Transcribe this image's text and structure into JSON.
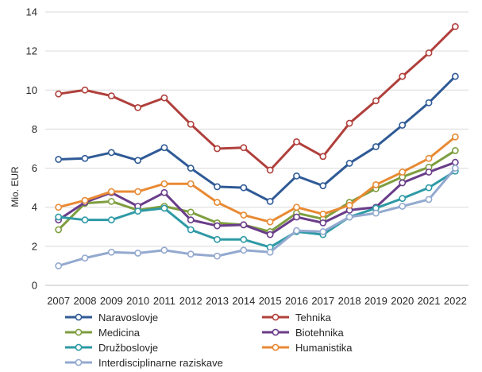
{
  "chart_data": {
    "type": "line",
    "title": "",
    "xlabel": "",
    "ylabel": "Mio. EUR",
    "ylim": [
      0,
      14
    ],
    "yticks": [
      0,
      2,
      4,
      6,
      8,
      10,
      12,
      14
    ],
    "grid": true,
    "legend_position": "bottom",
    "categories": [
      "2007",
      "2008",
      "2009",
      "2010",
      "2011",
      "2012",
      "2013",
      "2014",
      "2015",
      "2016",
      "2017",
      "2018",
      "2019",
      "2020",
      "2021",
      "2022"
    ],
    "series": [
      {
        "name": "Naravoslovje",
        "color": "#2F5A96",
        "values": [
          6.45,
          6.5,
          6.8,
          6.4,
          7.05,
          6.0,
          5.05,
          5.0,
          4.3,
          5.6,
          5.1,
          6.25,
          7.1,
          8.2,
          9.35,
          10.7
        ]
      },
      {
        "name": "Tehnika",
        "color": "#B0403C",
        "values": [
          9.8,
          10.0,
          9.7,
          9.1,
          9.6,
          8.25,
          7.0,
          7.05,
          5.9,
          7.35,
          6.6,
          8.3,
          9.45,
          10.7,
          11.9,
          13.25
        ]
      },
      {
        "name": "Medicina",
        "color": "#7E9E3F",
        "values": [
          2.85,
          4.2,
          4.3,
          3.85,
          4.05,
          3.75,
          3.2,
          3.1,
          2.75,
          3.7,
          3.4,
          4.25,
          4.95,
          5.55,
          6.05,
          6.9
        ]
      },
      {
        "name": "Biotehnika",
        "color": "#6A3D8A",
        "values": [
          3.35,
          4.25,
          4.75,
          4.05,
          4.75,
          3.35,
          3.05,
          3.1,
          2.6,
          3.5,
          3.2,
          3.85,
          4.0,
          5.25,
          5.8,
          6.3
        ]
      },
      {
        "name": "Družboslovje",
        "color": "#2E9AA6",
        "values": [
          3.5,
          3.35,
          3.35,
          3.8,
          3.95,
          2.85,
          2.35,
          2.35,
          1.95,
          2.75,
          2.6,
          3.5,
          3.95,
          4.45,
          5.0,
          5.85
        ]
      },
      {
        "name": "Humanistika",
        "color": "#E88A34",
        "values": [
          4.0,
          4.35,
          4.8,
          4.8,
          5.2,
          5.2,
          4.25,
          3.6,
          3.25,
          4.0,
          3.65,
          4.1,
          5.15,
          5.8,
          6.5,
          7.6
        ]
      },
      {
        "name": "Interdisciplinarne raziskave",
        "color": "#93A9CF",
        "values": [
          1.0,
          1.4,
          1.7,
          1.65,
          1.8,
          1.6,
          1.5,
          1.8,
          1.7,
          2.8,
          2.75,
          3.5,
          3.7,
          4.05,
          4.4,
          6.0
        ]
      }
    ]
  }
}
